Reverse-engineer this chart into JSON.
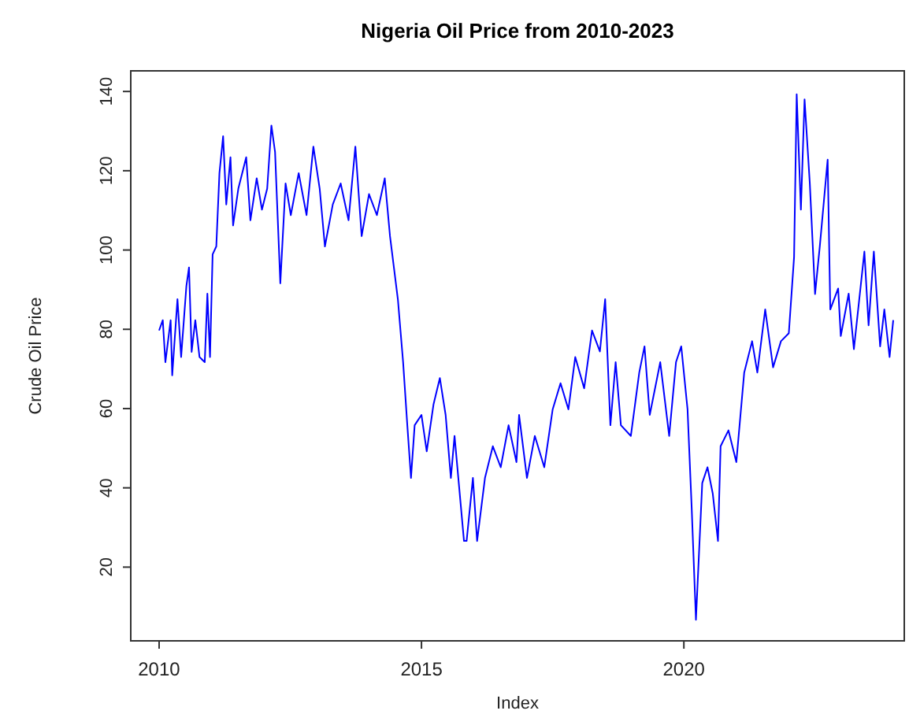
{
  "chart_data": {
    "type": "line",
    "title": "Nigeria Oil Price from 2010-2023",
    "xlabel": "Index",
    "ylabel": "Crude Oil Price",
    "xlim": [
      2009.46,
      2024.2
    ],
    "xticks": [
      2010,
      2015,
      2020
    ],
    "ylim": [
      1.4,
      145.2
    ],
    "yticks": [
      20,
      40,
      60,
      80,
      100,
      120,
      140
    ],
    "x": [
      2010.0,
      2010.07,
      2010.12,
      2010.22,
      2010.25,
      2010.35,
      2010.42,
      2010.52,
      2010.57,
      2010.62,
      2010.69,
      2010.77,
      2010.87,
      2010.92,
      2010.97,
      2011.02,
      2011.09,
      2011.15,
      2011.22,
      2011.28,
      2011.36,
      2011.41,
      2011.51,
      2011.66,
      2011.74,
      2011.86,
      2011.96,
      2012.06,
      2012.14,
      2012.21,
      2012.31,
      2012.41,
      2012.51,
      2012.66,
      2012.81,
      2012.94,
      2013.06,
      2013.16,
      2013.31,
      2013.46,
      2013.61,
      2013.74,
      2013.86,
      2014.0,
      2014.15,
      2014.3,
      2014.4,
      2014.55,
      2014.65,
      2014.73,
      2014.8,
      2014.87,
      2015.0,
      2015.1,
      2015.23,
      2015.35,
      2015.46,
      2015.56,
      2015.63,
      2015.81,
      2015.86,
      2015.98,
      2016.06,
      2016.21,
      2016.36,
      2016.51,
      2016.66,
      2016.81,
      2016.86,
      2017.01,
      2017.16,
      2017.34,
      2017.5,
      2017.65,
      2017.8,
      2017.93,
      2018.1,
      2018.25,
      2018.4,
      2018.5,
      2018.6,
      2018.7,
      2018.8,
      2018.99,
      2019.15,
      2019.25,
      2019.35,
      2019.55,
      2019.72,
      2019.85,
      2019.95,
      2020.07,
      2020.15,
      2020.23,
      2020.35,
      2020.45,
      2020.55,
      2020.65,
      2020.7,
      2020.85,
      2021.0,
      2021.15,
      2021.3,
      2021.4,
      2021.55,
      2021.7,
      2021.85,
      2022.0,
      2022.1,
      2022.15,
      2022.23,
      2022.3,
      2022.4,
      2022.5,
      2022.59,
      2022.74,
      2022.79,
      2022.94,
      2022.99,
      2023.14,
      2023.24,
      2023.44,
      2023.52,
      2023.62,
      2023.74,
      2023.82,
      2023.92,
      2023.99
    ],
    "series": [
      {
        "color": "#0000ff",
        "values": [
          79.7,
          82.3,
          71.7,
          82.3,
          68.4,
          87.6,
          73,
          90.9,
          95.6,
          74.3,
          82.3,
          73,
          71.7,
          89,
          73,
          98.9,
          100.9,
          119.4,
          128.7,
          111.5,
          123.4,
          106.2,
          115.5,
          123.4,
          107.5,
          118.1,
          110.2,
          115.5,
          131.4,
          124.7,
          91.6,
          116.8,
          108.8,
          119.4,
          108.8,
          126.1,
          115.5,
          100.9,
          111.5,
          116.8,
          107.5,
          126.1,
          103.5,
          114.1,
          108.8,
          118.1,
          103.5,
          87.6,
          71.7,
          55.8,
          42.5,
          55.8,
          58.4,
          49.2,
          61.1,
          67.7,
          58.4,
          42.5,
          53.1,
          26.6,
          26.6,
          42.5,
          26.6,
          42.5,
          50.5,
          45.2,
          55.8,
          46.5,
          58.4,
          42.5,
          53.1,
          45.2,
          59.8,
          66.4,
          59.8,
          73,
          65.1,
          79.7,
          74.4,
          87.6,
          55.8,
          71.7,
          55.8,
          53.1,
          69.1,
          75.7,
          58.4,
          71.7,
          53.1,
          71.7,
          75.7,
          59.8,
          34.6,
          6.7,
          41.2,
          45.2,
          38.6,
          26.6,
          50.5,
          54.5,
          46.5,
          69.1,
          77,
          69.1,
          85,
          70.4,
          77,
          79,
          98.2,
          139.3,
          110.2,
          138,
          116.8,
          88.9,
          100.9,
          122.8,
          85,
          90.3,
          78.3,
          89,
          75,
          99.6,
          81,
          99.6,
          75.7,
          85,
          73,
          82.3
        ]
      }
    ]
  }
}
